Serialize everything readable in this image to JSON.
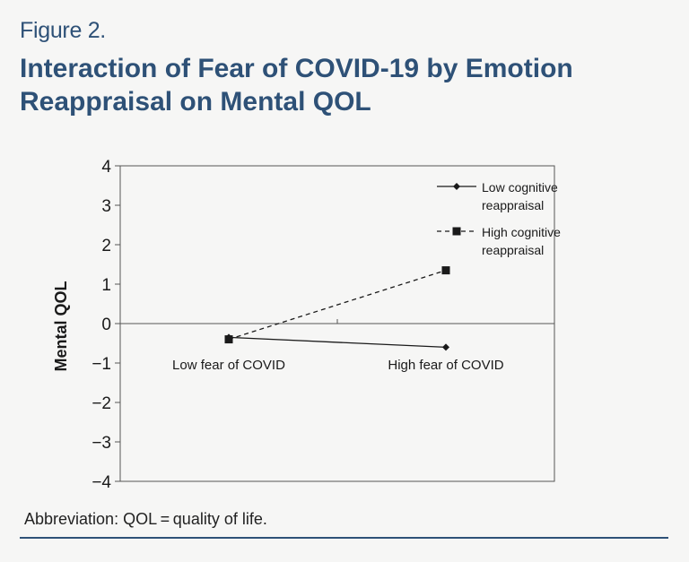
{
  "figure": {
    "label": "Figure 2.",
    "title": "Interaction of Fear of COVID-19 by Emotion Reappraisal on Mental QOL",
    "caption": "Abbreviation: QOL = quality of life."
  },
  "colors": {
    "accent": "#2e5177",
    "ink": "#1a1a1a",
    "background": "#f6f6f5"
  },
  "chart_data": {
    "type": "line",
    "title": "",
    "xlabel": "",
    "ylabel": "Mental QOL",
    "categories": [
      "Low fear of COVID",
      "High fear of COVID"
    ],
    "ylim": [
      -4,
      4
    ],
    "yticks": [
      4,
      3,
      2,
      1,
      0,
      -1,
      -2,
      -3,
      -4
    ],
    "ytick_labels": [
      "4",
      "3",
      "2",
      "1",
      "0",
      "−1",
      "−2",
      "−3",
      "−4"
    ],
    "grid": false,
    "legend_position": "top-right",
    "series": [
      {
        "name": "Low cognitive reappraisal",
        "name_lines": [
          "Low cognitive",
          "reappraisal"
        ],
        "values": [
          -0.35,
          -0.6
        ],
        "line_style": "solid",
        "marker": "diamond"
      },
      {
        "name": "High cognitive reappraisal",
        "name_lines": [
          "High cognitive",
          "reappraisal"
        ],
        "values": [
          -0.4,
          1.35
        ],
        "line_style": "dashed",
        "marker": "square"
      }
    ]
  }
}
